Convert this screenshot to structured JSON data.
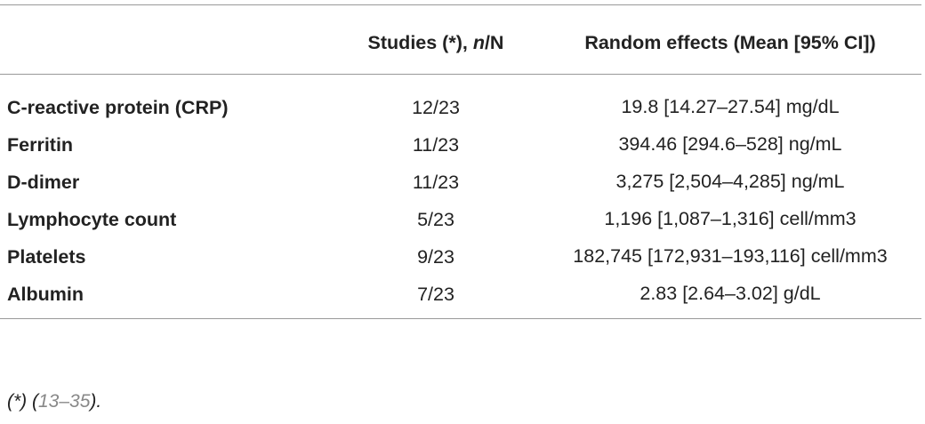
{
  "table": {
    "header": [
      {
        "parts": [
          "Studies (*), ",
          "n",
          "/N"
        ]
      },
      {
        "parts": [
          "Random effects (Mean [95% CI])"
        ]
      }
    ],
    "rows": [
      [
        "C-reactive protein (CRP)",
        "12/23",
        "19.8 [14.27–27.54] mg/dL"
      ],
      [
        "Ferritin",
        "11/23",
        "394.46 [294.6–528] ng/mL"
      ],
      [
        "D-dimer",
        "11/23",
        "3,275 [2,504–4,285] ng/mL"
      ],
      [
        "Lymphocyte count",
        "5/23",
        "1,196 [1,087–1,316] cell/mm3"
      ],
      [
        "Platelets",
        "9/23",
        "182,745 [172,931–193,116] cell/mm3"
      ],
      [
        "Albumin",
        "7/23",
        "2.83 [2.64–3.02] g/dL"
      ]
    ]
  },
  "footnote": [
    "(*) (",
    "13–35",
    ")."
  ]
}
